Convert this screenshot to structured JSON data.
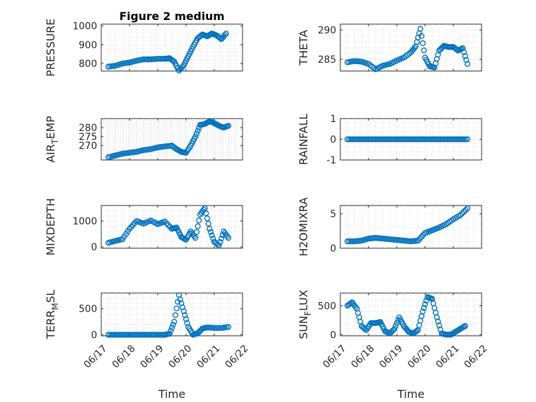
{
  "figure_title": "Figure 2 medium",
  "colors": {
    "marker": "#0072BD",
    "axis": "#262626",
    "grid": "#d0d0d0"
  },
  "chart_data": [
    {
      "type": "scatter",
      "title": "Figure 2 medium",
      "ylabel": "PRESSURE",
      "ylabel_sub": "",
      "ylabel_tail": "",
      "xlim": [
        "2020-06-17",
        "2020-06-22"
      ],
      "ylim": [
        760,
        1010
      ],
      "yticks": [
        800,
        900,
        1000
      ],
      "grid": true,
      "xlabel": "",
      "series": [
        {
          "x": [
            "2020-06-17 06:00",
            "2020-06-17 12:00",
            "2020-06-17 18:00",
            "2020-06-18 00:00",
            "2020-06-18 06:00",
            "2020-06-18 12:00",
            "2020-06-18 18:00",
            "2020-06-19 00:00",
            "2020-06-19 06:00",
            "2020-06-19 10:00",
            "2020-06-19 14:00",
            "2020-06-19 18:00",
            "2020-06-19 22:00",
            "2020-06-20 02:00",
            "2020-06-20 06:00",
            "2020-06-20 10:00",
            "2020-06-20 14:00",
            "2020-06-20 18:00",
            "2020-06-20 22:00",
            "2020-06-21 02:00",
            "2020-06-21 06:00",
            "2020-06-21 10:00"
          ],
          "y": [
            783,
            788,
            800,
            805,
            815,
            822,
            822,
            825,
            825,
            828,
            810,
            762,
            790,
            840,
            890,
            935,
            955,
            945,
            960,
            950,
            930,
            960
          ]
        }
      ]
    },
    {
      "type": "scatter",
      "title": "",
      "ylabel": "THETA",
      "ylabel_sub": "",
      "ylabel_tail": "",
      "xlim": [
        "2020-06-17",
        "2020-06-22"
      ],
      "ylim": [
        283,
        291
      ],
      "yticks": [
        285,
        290
      ],
      "grid": true,
      "xlabel": "",
      "series": [
        {
          "x": [
            "2020-06-17 06:00",
            "2020-06-17 12:00",
            "2020-06-17 18:00",
            "2020-06-18 00:00",
            "2020-06-18 06:00",
            "2020-06-18 12:00",
            "2020-06-18 18:00",
            "2020-06-19 00:00",
            "2020-06-19 06:00",
            "2020-06-19 12:00",
            "2020-06-19 16:00",
            "2020-06-19 20:00",
            "2020-06-20 00:00",
            "2020-06-20 04:00",
            "2020-06-20 08:00",
            "2020-06-20 12:00",
            "2020-06-20 16:00",
            "2020-06-20 20:00",
            "2020-06-21 00:00",
            "2020-06-21 04:00",
            "2020-06-21 08:00",
            "2020-06-21 12:00"
          ],
          "y": [
            284.5,
            284.7,
            284.6,
            284.2,
            283.3,
            283.9,
            284.2,
            284.8,
            285.3,
            286.2,
            287.2,
            290.2,
            285.3,
            283.8,
            283.6,
            286.5,
            287.3,
            287.1,
            287.1,
            286.5,
            286.9,
            284.2
          ]
        }
      ]
    },
    {
      "type": "scatter",
      "title": "",
      "ylabel": "AIR",
      "ylabel_sub": "T",
      "ylabel_tail": "EMP",
      "xlim": [
        "2020-06-17",
        "2020-06-22"
      ],
      "ylim": [
        262,
        285
      ],
      "yticks": [
        270,
        275,
        280
      ],
      "grid": true,
      "xlabel": "",
      "series": [
        {
          "x": [
            "2020-06-17 06:00",
            "2020-06-17 12:00",
            "2020-06-17 18:00",
            "2020-06-18 00:00",
            "2020-06-18 06:00",
            "2020-06-18 12:00",
            "2020-06-18 18:00",
            "2020-06-19 00:00",
            "2020-06-19 06:00",
            "2020-06-19 12:00",
            "2020-06-19 16:00",
            "2020-06-19 20:00",
            "2020-06-20 00:00",
            "2020-06-20 04:00",
            "2020-06-20 08:00",
            "2020-06-20 12:00",
            "2020-06-20 16:00",
            "2020-06-20 20:00",
            "2020-06-21 00:00",
            "2020-06-21 04:00",
            "2020-06-21 08:00",
            "2020-06-21 12:00"
          ],
          "y": [
            263.5,
            264.5,
            265.5,
            266,
            266.5,
            267.5,
            268,
            269,
            269.5,
            270,
            268,
            266.5,
            266,
            270,
            275,
            281.5,
            282,
            283.5,
            282.5,
            281,
            280,
            281
          ]
        }
      ]
    },
    {
      "type": "scatter",
      "title": "",
      "ylabel": "RAINFALL",
      "ylabel_sub": "",
      "ylabel_tail": "",
      "xlim": [
        "2020-06-17",
        "2020-06-22"
      ],
      "ylim": [
        -1,
        1
      ],
      "yticks": [
        -1,
        0,
        1
      ],
      "grid": true,
      "xlabel": "",
      "series": [
        {
          "x": [
            "2020-06-17 06:00",
            "2020-06-17 12:00",
            "2020-06-17 18:00",
            "2020-06-18 00:00",
            "2020-06-18 06:00",
            "2020-06-18 12:00",
            "2020-06-18 18:00",
            "2020-06-19 00:00",
            "2020-06-19 06:00",
            "2020-06-19 12:00",
            "2020-06-19 18:00",
            "2020-06-20 00:00",
            "2020-06-20 06:00",
            "2020-06-20 12:00",
            "2020-06-20 18:00",
            "2020-06-21 00:00",
            "2020-06-21 06:00",
            "2020-06-21 12:00"
          ],
          "y": [
            0,
            0,
            0,
            0,
            0,
            0,
            0,
            0,
            0,
            0,
            0,
            0,
            0,
            0,
            0,
            0,
            0,
            0
          ]
        }
      ]
    },
    {
      "type": "scatter",
      "title": "",
      "ylabel": "MIXDEPTH",
      "ylabel_sub": "",
      "ylabel_tail": "",
      "xlim": [
        "2020-06-17",
        "2020-06-22"
      ],
      "ylim": [
        -50,
        1600
      ],
      "yticks": [
        0,
        1000
      ],
      "grid": true,
      "xlabel": "",
      "series": [
        {
          "x": [
            "2020-06-17 06:00",
            "2020-06-17 12:00",
            "2020-06-17 18:00",
            "2020-06-18 00:00",
            "2020-06-18 06:00",
            "2020-06-18 12:00",
            "2020-06-18 18:00",
            "2020-06-19 00:00",
            "2020-06-19 06:00",
            "2020-06-19 12:00",
            "2020-06-19 16:00",
            "2020-06-19 20:00",
            "2020-06-20 00:00",
            "2020-06-20 04:00",
            "2020-06-20 08:00",
            "2020-06-20 12:00",
            "2020-06-20 16:00",
            "2020-06-20 20:00",
            "2020-06-21 00:00",
            "2020-06-21 04:00",
            "2020-06-21 08:00",
            "2020-06-21 12:00"
          ],
          "y": [
            160,
            230,
            300,
            700,
            1000,
            900,
            1020,
            880,
            980,
            700,
            750,
            380,
            280,
            600,
            350,
            1250,
            1500,
            700,
            200,
            50,
            600,
            350
          ]
        }
      ]
    },
    {
      "type": "scatter",
      "title": "",
      "ylabel": "H2OMIXRA",
      "ylabel_sub": "",
      "ylabel_tail": "",
      "xlim": [
        "2020-06-17",
        "2020-06-22"
      ],
      "ylim": [
        0,
        6.2
      ],
      "yticks": [
        0,
        5
      ],
      "grid": true,
      "xlabel": "",
      "series": [
        {
          "x": [
            "2020-06-17 06:00",
            "2020-06-17 12:00",
            "2020-06-17 18:00",
            "2020-06-18 00:00",
            "2020-06-18 06:00",
            "2020-06-18 12:00",
            "2020-06-18 18:00",
            "2020-06-19 00:00",
            "2020-06-19 06:00",
            "2020-06-19 12:00",
            "2020-06-19 18:00",
            "2020-06-20 00:00",
            "2020-06-20 06:00",
            "2020-06-20 12:00",
            "2020-06-20 18:00",
            "2020-06-21 00:00",
            "2020-06-21 06:00",
            "2020-06-21 12:00"
          ],
          "y": [
            1,
            1,
            1.1,
            1.4,
            1.5,
            1.4,
            1.3,
            1.2,
            1.1,
            1,
            1.1,
            2.2,
            2.6,
            3,
            3.5,
            4.2,
            4.8,
            5.8
          ]
        }
      ]
    },
    {
      "type": "scatter",
      "title": "",
      "ylabel": "TERR",
      "ylabel_sub": "M",
      "ylabel_tail": "SL",
      "xlim": [
        "2020-06-17",
        "2020-06-22"
      ],
      "ylim": [
        -20,
        800
      ],
      "yticks": [
        0,
        500
      ],
      "grid": true,
      "xlabel": "Time",
      "xticks": [
        "06/17",
        "06/18",
        "06/19",
        "06/20",
        "06/21",
        "06/22"
      ],
      "series": [
        {
          "x": [
            "2020-06-17 06:00",
            "2020-06-17 12:00",
            "2020-06-17 18:00",
            "2020-06-18 00:00",
            "2020-06-18 06:00",
            "2020-06-18 12:00",
            "2020-06-18 18:00",
            "2020-06-19 00:00",
            "2020-06-19 06:00",
            "2020-06-19 10:00",
            "2020-06-19 14:00",
            "2020-06-19 18:00",
            "2020-06-19 22:00",
            "2020-06-20 02:00",
            "2020-06-20 06:00",
            "2020-06-20 10:00",
            "2020-06-20 14:00",
            "2020-06-20 18:00",
            "2020-06-21 00:00",
            "2020-06-21 06:00",
            "2020-06-21 12:00"
          ],
          "y": [
            0,
            0,
            0,
            0,
            0,
            0,
            0,
            0,
            0,
            20,
            250,
            760,
            450,
            150,
            0,
            30,
            120,
            140,
            130,
            130,
            150
          ]
        }
      ]
    },
    {
      "type": "scatter",
      "title": "",
      "ylabel": "SUN",
      "ylabel_sub": "F",
      "ylabel_tail": "LUX",
      "xlim": [
        "2020-06-17",
        "2020-06-22"
      ],
      "ylim": [
        -20,
        720
      ],
      "yticks": [
        0,
        500
      ],
      "grid": true,
      "xlabel": "Time",
      "xticks": [
        "06/17",
        "06/18",
        "06/19",
        "06/20",
        "06/21",
        "06/22"
      ],
      "series": [
        {
          "x": [
            "2020-06-17 06:00",
            "2020-06-17 10:00",
            "2020-06-17 14:00",
            "2020-06-17 18:00",
            "2020-06-17 22:00",
            "2020-06-18 02:00",
            "2020-06-18 06:00",
            "2020-06-18 10:00",
            "2020-06-18 14:00",
            "2020-06-18 18:00",
            "2020-06-18 22:00",
            "2020-06-19 02:00",
            "2020-06-19 06:00",
            "2020-06-19 10:00",
            "2020-06-19 14:00",
            "2020-06-19 18:00",
            "2020-06-19 22:00",
            "2020-06-20 02:00",
            "2020-06-20 06:00",
            "2020-06-20 10:00",
            "2020-06-20 14:00",
            "2020-06-20 18:00",
            "2020-06-20 22:00",
            "2020-06-21 02:00",
            "2020-06-21 06:00",
            "2020-06-21 10:00"
          ],
          "y": [
            500,
            560,
            450,
            150,
            80,
            200,
            200,
            220,
            60,
            20,
            100,
            300,
            150,
            50,
            20,
            80,
            400,
            650,
            620,
            300,
            20,
            0,
            0,
            50,
            100,
            150
          ]
        }
      ]
    }
  ]
}
